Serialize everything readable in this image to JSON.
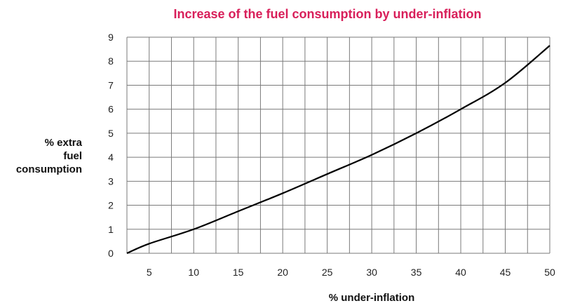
{
  "chart_data": {
    "type": "line",
    "title": "Increase of the fuel consumption by under-inflation",
    "title_color": "#d81f5a",
    "xlabel": "% under-inflation",
    "ylabel_lines": [
      "% extra",
      "fuel",
      "consumption"
    ],
    "xlim": [
      2.5,
      50
    ],
    "ylim": [
      0,
      9
    ],
    "x_ticks": [
      5,
      10,
      15,
      20,
      25,
      30,
      35,
      40,
      45,
      50
    ],
    "y_ticks": [
      0,
      1,
      2,
      3,
      4,
      5,
      6,
      7,
      8,
      9
    ],
    "grid": true,
    "series": [
      {
        "color": "#000000",
        "x": [
          2.5,
          5,
          10,
          15,
          20,
          25,
          30,
          35,
          40,
          45,
          50
        ],
        "y": [
          0,
          0.4,
          1.0,
          1.75,
          2.5,
          3.3,
          4.1,
          5.0,
          6.0,
          7.1,
          8.65
        ]
      }
    ]
  }
}
